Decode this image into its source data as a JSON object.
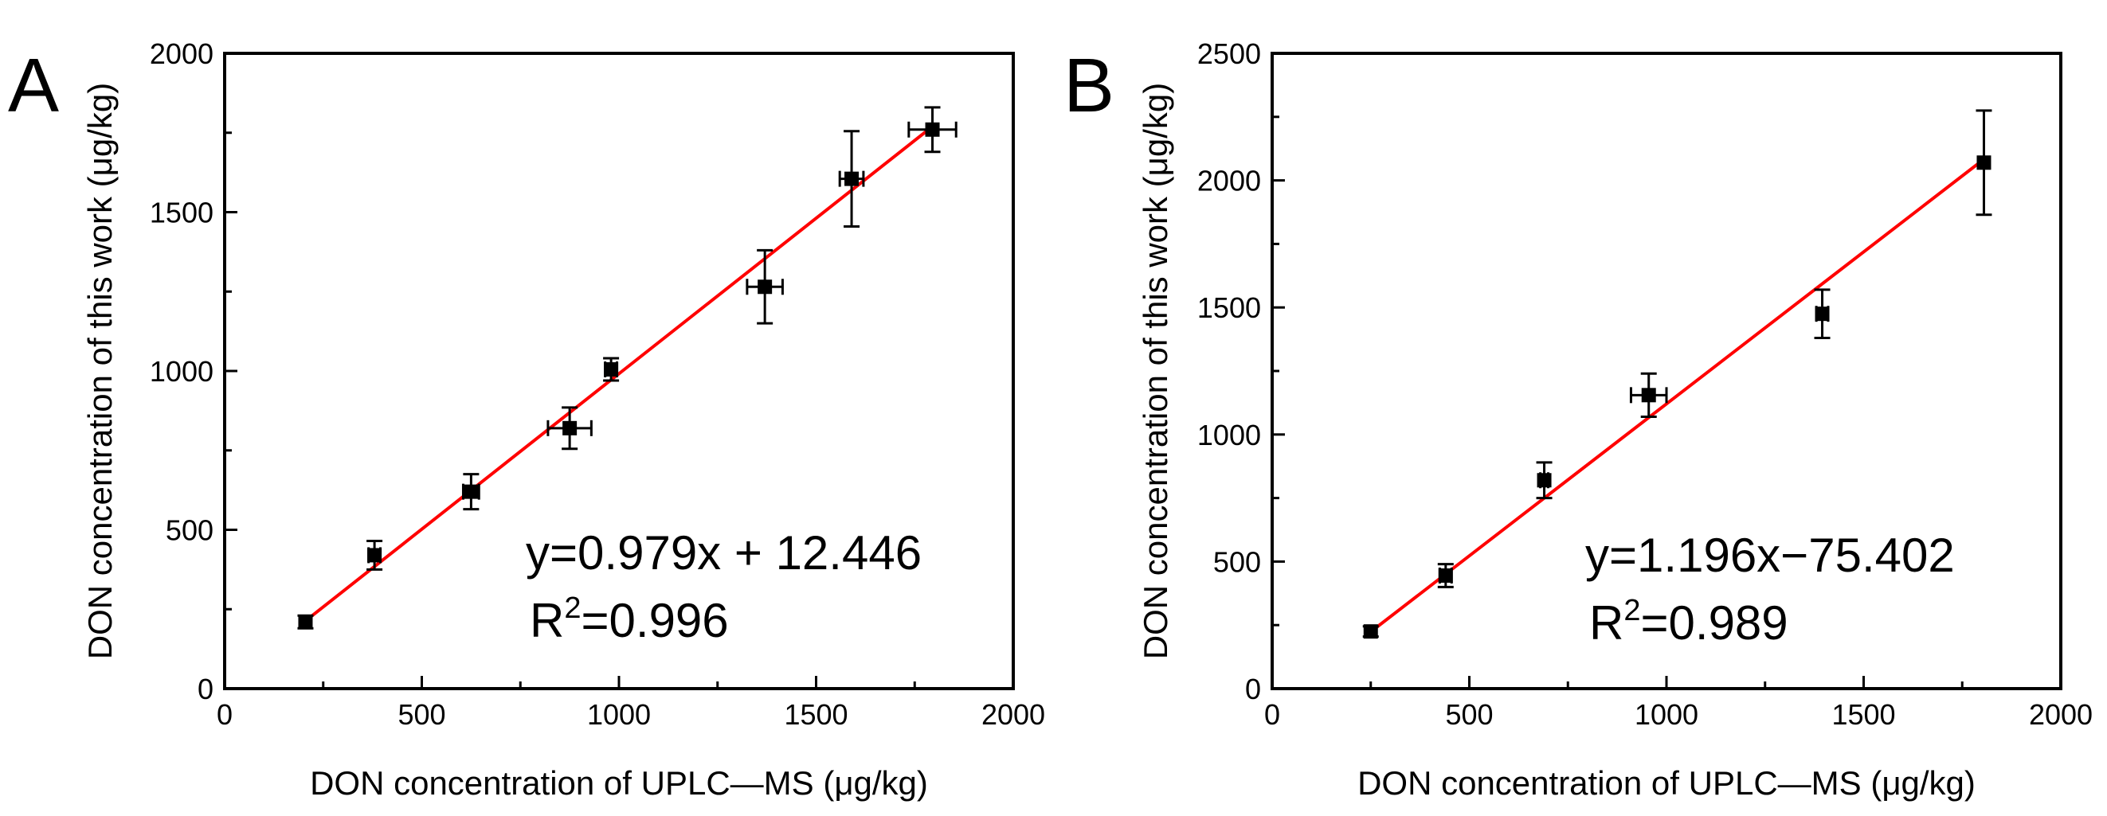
{
  "chart_data": [
    {
      "type": "scatter",
      "panel": "A",
      "xlabel": "DON concentration of UPLC—MS (μg/kg)",
      "ylabel": "DON concentration of this work (μg/kg)",
      "xlim": [
        0,
        2000
      ],
      "ylim": [
        0,
        2000
      ],
      "xticks": [
        0,
        500,
        1000,
        1500,
        2000
      ],
      "yticks": [
        0,
        500,
        1000,
        1500,
        2000
      ],
      "xtick_labels": [
        "0",
        "500",
        "1000",
        "1500",
        "2000"
      ],
      "ytick_labels": [
        "0",
        "500",
        "1000",
        "1500",
        "2000"
      ],
      "grid": false,
      "points": [
        {
          "x": 205,
          "y": 210,
          "xerr": 0,
          "yerr": 20
        },
        {
          "x": 380,
          "y": 420,
          "xerr": 15,
          "yerr": 45
        },
        {
          "x": 625,
          "y": 620,
          "xerr": 20,
          "yerr": 55
        },
        {
          "x": 875,
          "y": 820,
          "xerr": 55,
          "yerr": 65
        },
        {
          "x": 980,
          "y": 1005,
          "xerr": 15,
          "yerr": 35
        },
        {
          "x": 1370,
          "y": 1265,
          "xerr": 45,
          "yerr": 115
        },
        {
          "x": 1590,
          "y": 1605,
          "xerr": 30,
          "yerr": 150
        },
        {
          "x": 1795,
          "y": 1760,
          "xerr": 60,
          "yerr": 70
        }
      ],
      "fit": {
        "slope": 0.979,
        "intercept": 12.446,
        "x_range": [
          205,
          1795
        ],
        "color": "#ff0000"
      },
      "equation": "y=0.979x + 12.446",
      "r_squared_prefix": "R",
      "r_squared_sup": "2",
      "r_squared_value": "=0.996"
    },
    {
      "type": "scatter",
      "panel": "B",
      "xlabel": "DON concentration of UPLC—MS (μg/kg)",
      "ylabel": "DON concentration of this work (μg/kg)",
      "xlim": [
        0,
        2000
      ],
      "ylim": [
        0,
        2500
      ],
      "xticks": [
        0,
        500,
        1000,
        1500,
        2000
      ],
      "yticks": [
        0,
        500,
        1000,
        1500,
        2000,
        2500
      ],
      "xtick_labels": [
        "0",
        "500",
        "1000",
        "1500",
        "2000"
      ],
      "ytick_labels": [
        "0",
        "500",
        "1000",
        "1500",
        "2000",
        "2500"
      ],
      "grid": false,
      "points": [
        {
          "x": 250,
          "y": 225,
          "xerr": 0,
          "yerr": 20
        },
        {
          "x": 440,
          "y": 445,
          "xerr": 15,
          "yerr": 45
        },
        {
          "x": 690,
          "y": 820,
          "xerr": 10,
          "yerr": 70
        },
        {
          "x": 955,
          "y": 1155,
          "xerr": 45,
          "yerr": 85
        },
        {
          "x": 1395,
          "y": 1475,
          "xerr": 15,
          "yerr": 95
        },
        {
          "x": 1805,
          "y": 2070,
          "xerr": 0,
          "yerr": 205
        }
      ],
      "fit": {
        "slope": 1.196,
        "intercept": -75.402,
        "x_range": [
          250,
          1805
        ],
        "color": "#ff0000"
      },
      "equation": "y=1.196x−75.402",
      "r_squared_prefix": "R",
      "r_squared_sup": "2",
      "r_squared_value": "=0.989"
    }
  ]
}
